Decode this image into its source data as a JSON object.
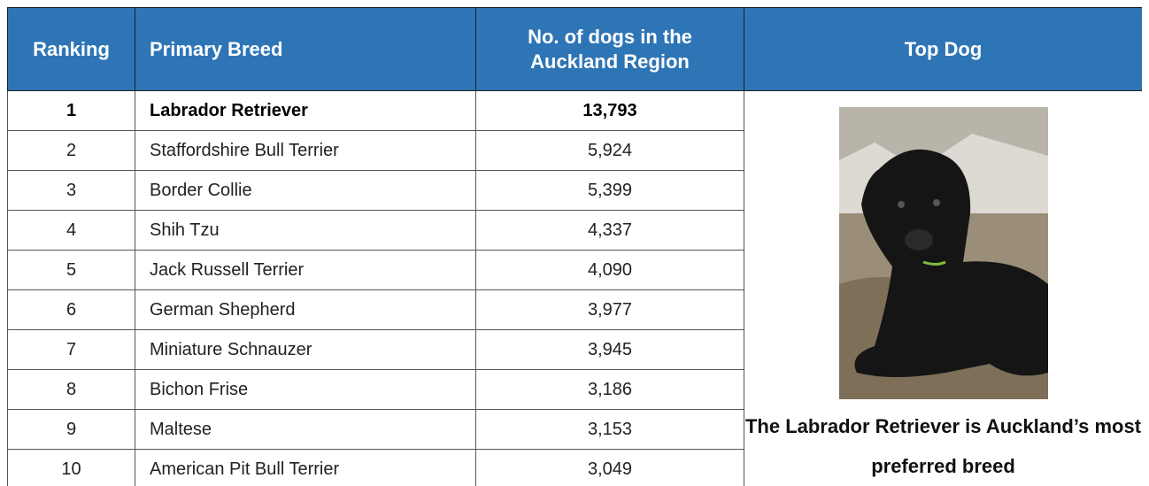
{
  "table": {
    "header": [
      "Ranking",
      "Primary Breed",
      "No. of dogs in the Auckland Region",
      "Top Dog"
    ],
    "rows": [
      [
        1,
        "Labrador Retriever",
        "13,793"
      ],
      [
        2,
        "Staffordshire Bull Terrier",
        "5,924"
      ],
      [
        3,
        "Border Collie",
        "5,399"
      ],
      [
        4,
        "Shih Tzu",
        "4,337"
      ],
      [
        5,
        "Jack Russell Terrier",
        "4,090"
      ],
      [
        6,
        "German Shepherd",
        "3,977"
      ],
      [
        7,
        "Miniature Schnauzer",
        "3,945"
      ],
      [
        8,
        "Bichon Frise",
        "3,186"
      ],
      [
        9,
        "Maltese",
        "3,153"
      ],
      [
        10,
        "American Pit Bull Terrier",
        "3,049"
      ]
    ]
  },
  "top_dog": {
    "caption": {
      "before": "The",
      "bold": "Labrador Retriever",
      "after": "is Auckland’s most preferred breed"
    }
  }
}
